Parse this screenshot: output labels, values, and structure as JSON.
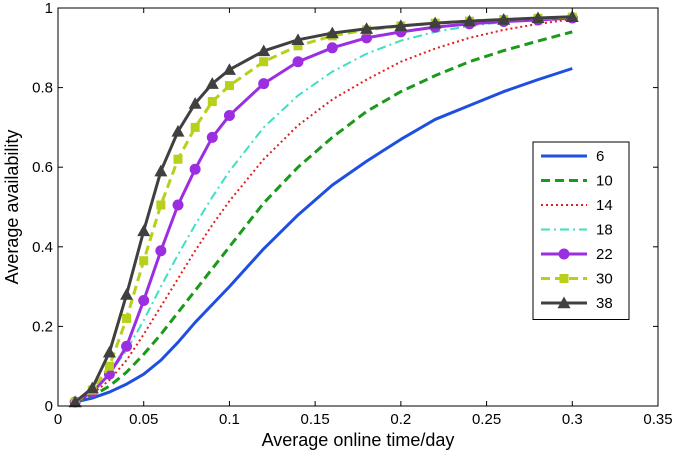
{
  "chart_data": {
    "type": "line",
    "title": "",
    "xlabel": "Average online time/day",
    "ylabel": "Average availability",
    "xlim": [
      0,
      0.35
    ],
    "ylim": [
      0,
      1
    ],
    "xticks": [
      0,
      0.05,
      0.1,
      0.15,
      0.2,
      0.25,
      0.3,
      0.35
    ],
    "xtick_labels": [
      "0",
      "0.05",
      "0.1",
      "0.15",
      "0.2",
      "0.25",
      "0.3",
      "0.35"
    ],
    "yticks": [
      0,
      0.2,
      0.4,
      0.6,
      0.8,
      1
    ],
    "ytick_labels": [
      "0",
      "0.2",
      "0.4",
      "0.6",
      "0.8",
      "1"
    ],
    "grid": false,
    "legend_position": "right-middle",
    "series": [
      {
        "name": "6",
        "color": "#1f4fe0",
        "dash": "solid",
        "marker": "none",
        "x": [
          0.01,
          0.02,
          0.03,
          0.04,
          0.05,
          0.06,
          0.07,
          0.08,
          0.09,
          0.1,
          0.12,
          0.14,
          0.16,
          0.18,
          0.2,
          0.22,
          0.24,
          0.26,
          0.28,
          0.3
        ],
        "y": [
          0.01,
          0.02,
          0.035,
          0.055,
          0.08,
          0.115,
          0.16,
          0.21,
          0.255,
          0.3,
          0.395,
          0.48,
          0.555,
          0.615,
          0.67,
          0.72,
          0.755,
          0.79,
          0.82,
          0.848
        ]
      },
      {
        "name": "10",
        "color": "#1a9a1a",
        "dash": "dashed",
        "marker": "none",
        "x": [
          0.01,
          0.02,
          0.03,
          0.04,
          0.05,
          0.06,
          0.07,
          0.08,
          0.09,
          0.1,
          0.12,
          0.14,
          0.16,
          0.18,
          0.2,
          0.22,
          0.24,
          0.26,
          0.28,
          0.3
        ],
        "y": [
          0.01,
          0.025,
          0.05,
          0.085,
          0.13,
          0.18,
          0.235,
          0.29,
          0.345,
          0.4,
          0.51,
          0.6,
          0.675,
          0.74,
          0.79,
          0.83,
          0.865,
          0.893,
          0.917,
          0.94
        ]
      },
      {
        "name": "14",
        "color": "#e02020",
        "dash": "dotted",
        "marker": "none",
        "x": [
          0.01,
          0.02,
          0.03,
          0.04,
          0.05,
          0.06,
          0.07,
          0.08,
          0.09,
          0.1,
          0.12,
          0.14,
          0.16,
          0.18,
          0.2,
          0.22,
          0.24,
          0.26,
          0.28,
          0.3
        ],
        "y": [
          0.01,
          0.03,
          0.065,
          0.115,
          0.18,
          0.25,
          0.32,
          0.39,
          0.455,
          0.515,
          0.62,
          0.705,
          0.77,
          0.82,
          0.865,
          0.898,
          0.925,
          0.945,
          0.96,
          0.972
        ]
      },
      {
        "name": "18",
        "color": "#3ee0c0",
        "dash": "dashdot",
        "marker": "none",
        "x": [
          0.01,
          0.02,
          0.03,
          0.04,
          0.05,
          0.06,
          0.07,
          0.08,
          0.09,
          0.1,
          0.12,
          0.14,
          0.16,
          0.18,
          0.2,
          0.22,
          0.24,
          0.26,
          0.28,
          0.3
        ],
        "y": [
          0.01,
          0.035,
          0.08,
          0.14,
          0.215,
          0.3,
          0.38,
          0.455,
          0.525,
          0.59,
          0.7,
          0.78,
          0.84,
          0.885,
          0.918,
          0.94,
          0.955,
          0.965,
          0.972,
          0.977
        ]
      },
      {
        "name": "22",
        "color": "#9b2ee0",
        "dash": "solid",
        "marker": "circle",
        "x": [
          0.01,
          0.02,
          0.03,
          0.04,
          0.05,
          0.06,
          0.07,
          0.08,
          0.09,
          0.1,
          0.12,
          0.14,
          0.16,
          0.18,
          0.2,
          0.22,
          0.24,
          0.26,
          0.28,
          0.3
        ],
        "y": [
          0.01,
          0.035,
          0.08,
          0.15,
          0.265,
          0.39,
          0.505,
          0.595,
          0.675,
          0.73,
          0.81,
          0.865,
          0.9,
          0.925,
          0.94,
          0.952,
          0.96,
          0.966,
          0.97,
          0.975
        ]
      },
      {
        "name": "30",
        "color": "#b8d01a",
        "dash": "dashed",
        "marker": "square",
        "x": [
          0.01,
          0.02,
          0.03,
          0.04,
          0.05,
          0.06,
          0.07,
          0.08,
          0.09,
          0.1,
          0.12,
          0.14,
          0.16,
          0.18,
          0.2,
          0.22,
          0.24,
          0.26,
          0.28,
          0.3
        ],
        "y": [
          0.01,
          0.04,
          0.1,
          0.22,
          0.365,
          0.505,
          0.62,
          0.7,
          0.765,
          0.805,
          0.865,
          0.905,
          0.93,
          0.945,
          0.955,
          0.962,
          0.967,
          0.971,
          0.974,
          0.977
        ]
      },
      {
        "name": "38",
        "color": "#404040",
        "dash": "solid",
        "marker": "triangle",
        "x": [
          0.01,
          0.02,
          0.03,
          0.04,
          0.05,
          0.06,
          0.07,
          0.08,
          0.09,
          0.1,
          0.12,
          0.14,
          0.16,
          0.18,
          0.2,
          0.22,
          0.24,
          0.26,
          0.28,
          0.3
        ],
        "y": [
          0.01,
          0.045,
          0.135,
          0.28,
          0.44,
          0.59,
          0.69,
          0.76,
          0.81,
          0.845,
          0.892,
          0.92,
          0.937,
          0.948,
          0.955,
          0.962,
          0.967,
          0.971,
          0.975,
          0.978
        ]
      }
    ]
  }
}
